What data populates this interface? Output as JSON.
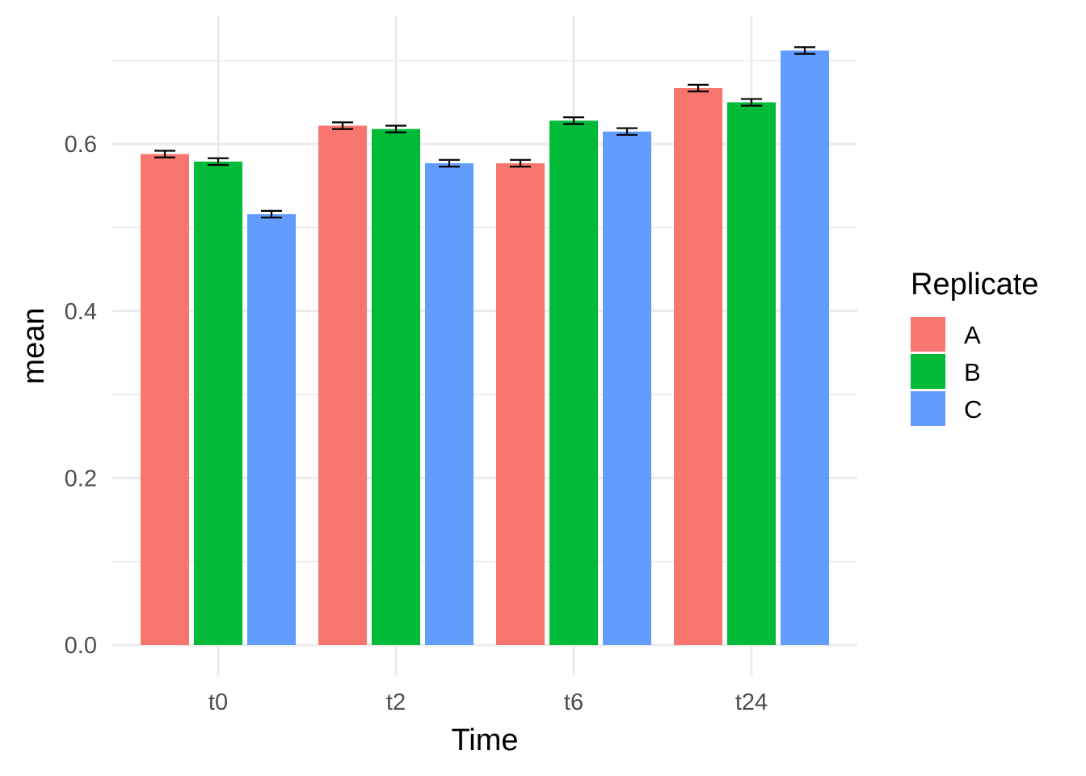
{
  "chart_data": {
    "type": "bar",
    "xlabel": "Time",
    "ylabel": "mean",
    "ylim": [
      0,
      0.75
    ],
    "yticks": [
      0.0,
      0.2,
      0.4,
      0.6
    ],
    "ytick_labels": [
      "0.0",
      "0.2",
      "0.4",
      "0.6"
    ],
    "categories": [
      "t0",
      "t2",
      "t6",
      "t24"
    ],
    "series": [
      {
        "name": "A",
        "color": "#F8766D",
        "values": [
          0.588,
          0.622,
          0.577,
          0.667
        ],
        "errors": [
          0.004,
          0.004,
          0.004,
          0.004
        ]
      },
      {
        "name": "B",
        "color": "#00BA38",
        "values": [
          0.579,
          0.618,
          0.628,
          0.65
        ],
        "errors": [
          0.004,
          0.004,
          0.004,
          0.004
        ]
      },
      {
        "name": "C",
        "color": "#619CFF",
        "values": [
          0.516,
          0.577,
          0.615,
          0.712
        ],
        "errors": [
          0.004,
          0.004,
          0.004,
          0.004
        ]
      }
    ],
    "grid": true,
    "legend": {
      "title": "Replicate",
      "placement": "right"
    }
  }
}
